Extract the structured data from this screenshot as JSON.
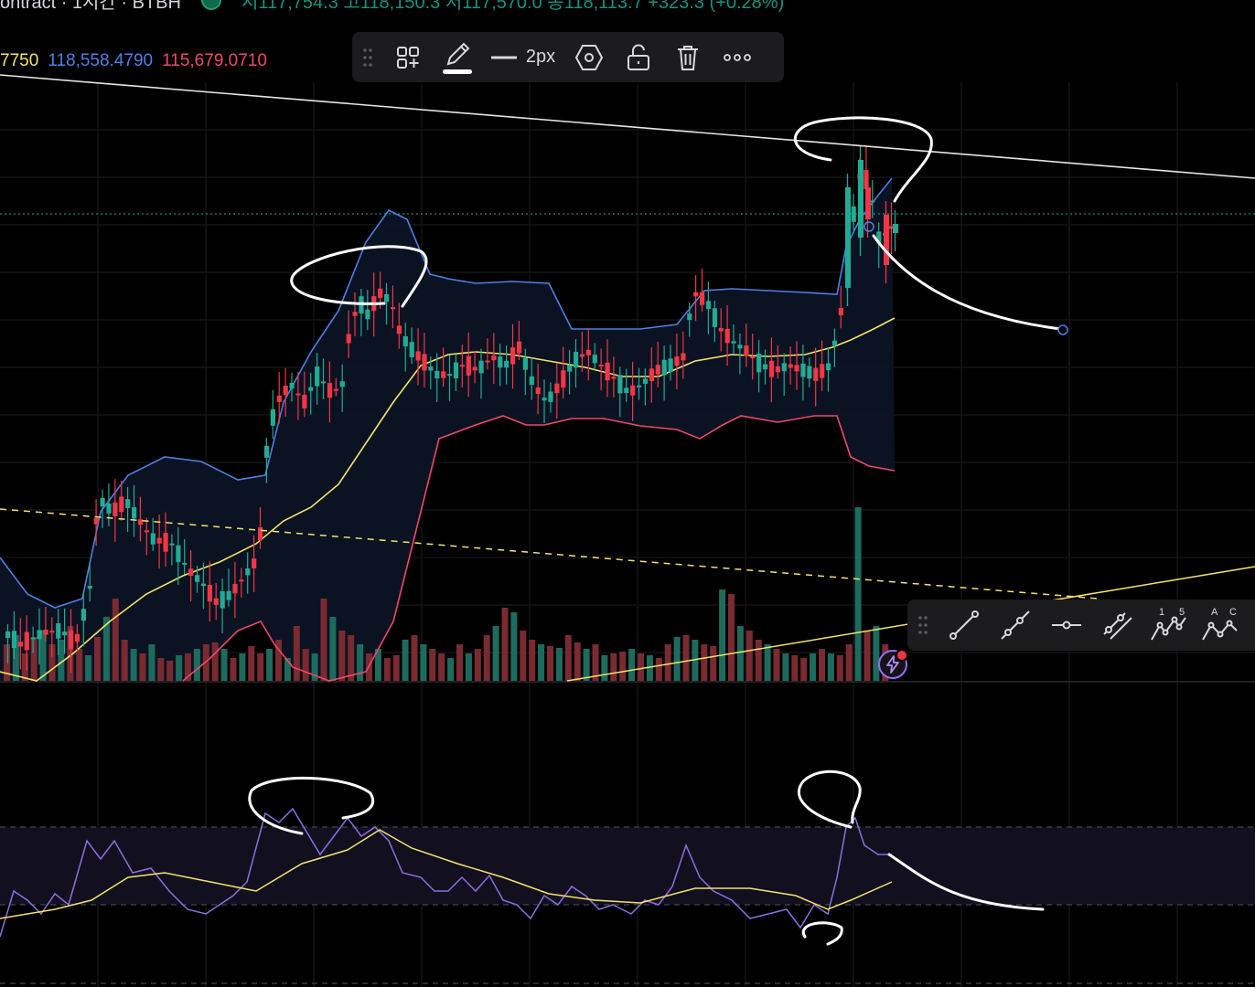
{
  "header": {
    "title": "ontract · 1시간 · BTBH",
    "ohlc": "시117,754.3  고118,150.3  저117,570.0  종118,113.7  +323.3 (+0.28%)"
  },
  "bollinger": {
    "basis_value": "7750",
    "upper_value": "118,558.4790",
    "lower_value": "115,679.0710"
  },
  "drawing_toolbar": {
    "line_width_label": "2px",
    "icons": [
      "grip-icon",
      "add-to-favorites-icon",
      "pencil-icon",
      "line-width-icon",
      "settings-hexagon-icon",
      "unlock-icon",
      "trash-icon",
      "more-icon"
    ]
  },
  "line_tools": {
    "icons": [
      "trend-line-icon",
      "ray-icon",
      "horizontal-line-icon",
      "parallel-channel-icon",
      "elliott-impulse-icon",
      "elliott-correction-icon"
    ],
    "elliott_impulse_labels": [
      "1",
      "5"
    ],
    "elliott_correction_labels": [
      "A",
      "C"
    ]
  },
  "colors": {
    "up": "#22ab94",
    "down": "#f23645",
    "bb_upper": "#4f7fe6",
    "bb_lower": "#f0486b",
    "bb_basis": "#f4e36b",
    "rsi": "#8c6fe0",
    "rsi_ma": "#f4e36b"
  }
}
